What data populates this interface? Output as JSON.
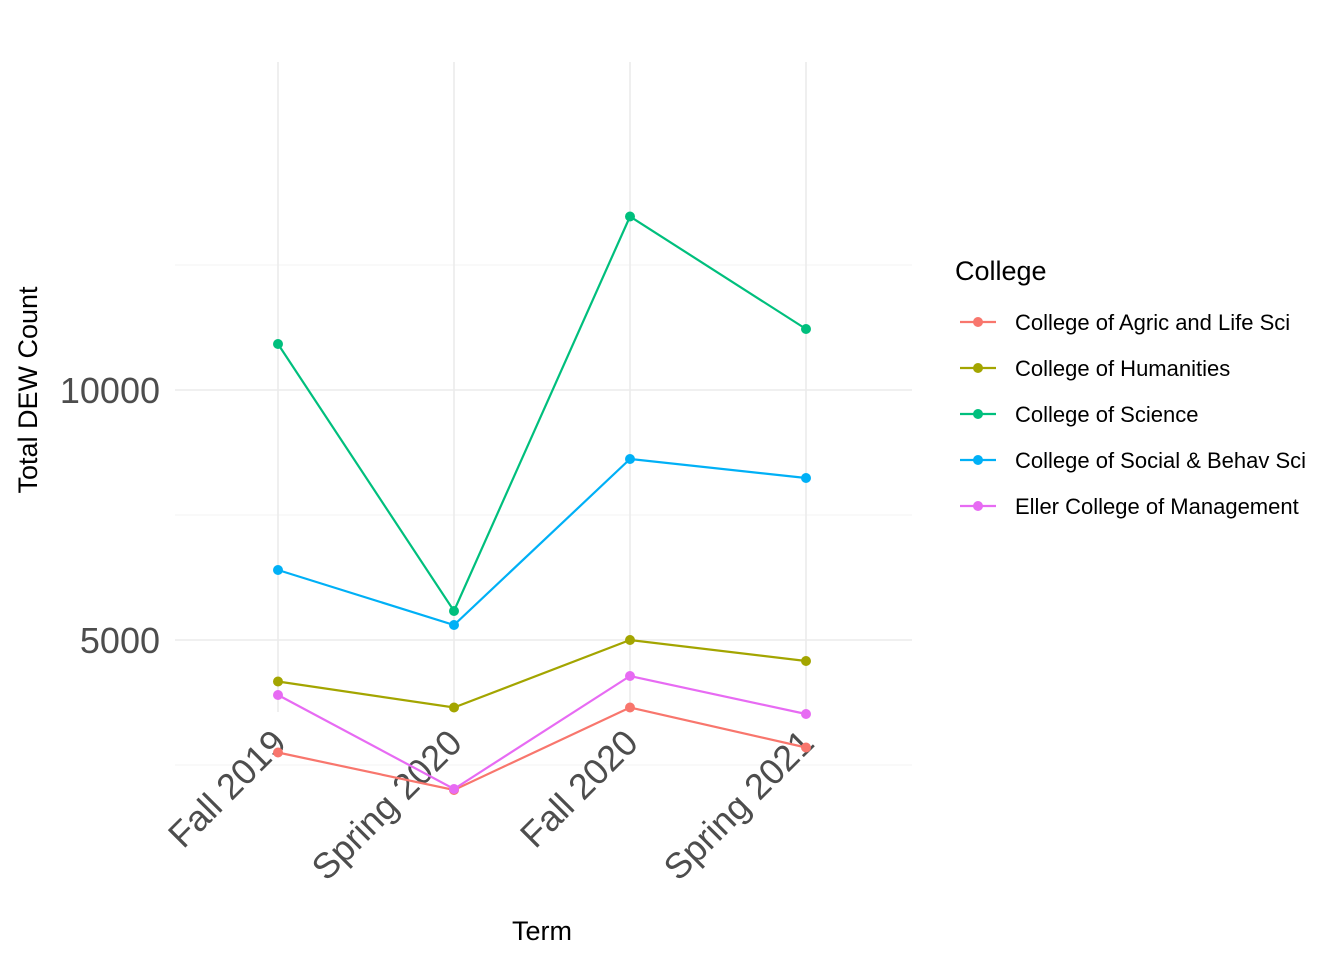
{
  "chart_data": {
    "type": "line",
    "xlabel": "Term",
    "ylabel": "Total DEW Count",
    "categories": [
      "Fall 2019",
      "Spring 2020",
      "Fall 2020",
      "Spring 2021"
    ],
    "ylim": [
      1400,
      14500
    ],
    "y_ticks": [
      5000,
      10000
    ],
    "y_tick_labels": [
      "5000",
      "10000"
    ],
    "grid": true,
    "legend": {
      "title": "College",
      "position": "right"
    },
    "series": [
      {
        "name": "College of Agric and Life Sci",
        "color": "#F8766D",
        "values": [
          2750,
          2000,
          3650,
          2850
        ]
      },
      {
        "name": "College of Humanities",
        "color": "#A3A500",
        "values": [
          4170,
          3650,
          5000,
          4580
        ]
      },
      {
        "name": "College of Science",
        "color": "#00BF7D",
        "values": [
          10920,
          5580,
          13470,
          11220
        ]
      },
      {
        "name": "College of Social & Behav Sci",
        "color": "#00B0F6",
        "values": [
          6400,
          5300,
          8620,
          8240
        ]
      },
      {
        "name": "Eller College of Management",
        "color": "#E76BF3",
        "values": [
          3900,
          2020,
          4280,
          3520
        ]
      }
    ]
  }
}
